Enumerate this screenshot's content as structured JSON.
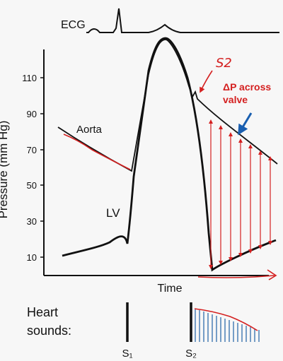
{
  "ecg": {
    "label": "ECG"
  },
  "y_axis": {
    "label": "Pressure (mm Hg)",
    "ticks": [
      "110",
      "90",
      "70",
      "50",
      "30",
      "10"
    ]
  },
  "x_axis": {
    "label": "Time"
  },
  "curves": {
    "aorta_label": "Aorta",
    "lv_label": "LV"
  },
  "annotations": {
    "s2_handwritten": "S2",
    "delta_p_line1": "ΔP across",
    "delta_p_line2": "valve"
  },
  "heart_sounds": {
    "label_line1": "Heart",
    "label_line2": "sounds:",
    "s1_label": "S₁",
    "s2_label": "S₂"
  },
  "colors": {
    "annotation_red": "#d42020",
    "arrow_blue": "#1a5fb0",
    "murmur_blue": "#4a7fb5"
  }
}
